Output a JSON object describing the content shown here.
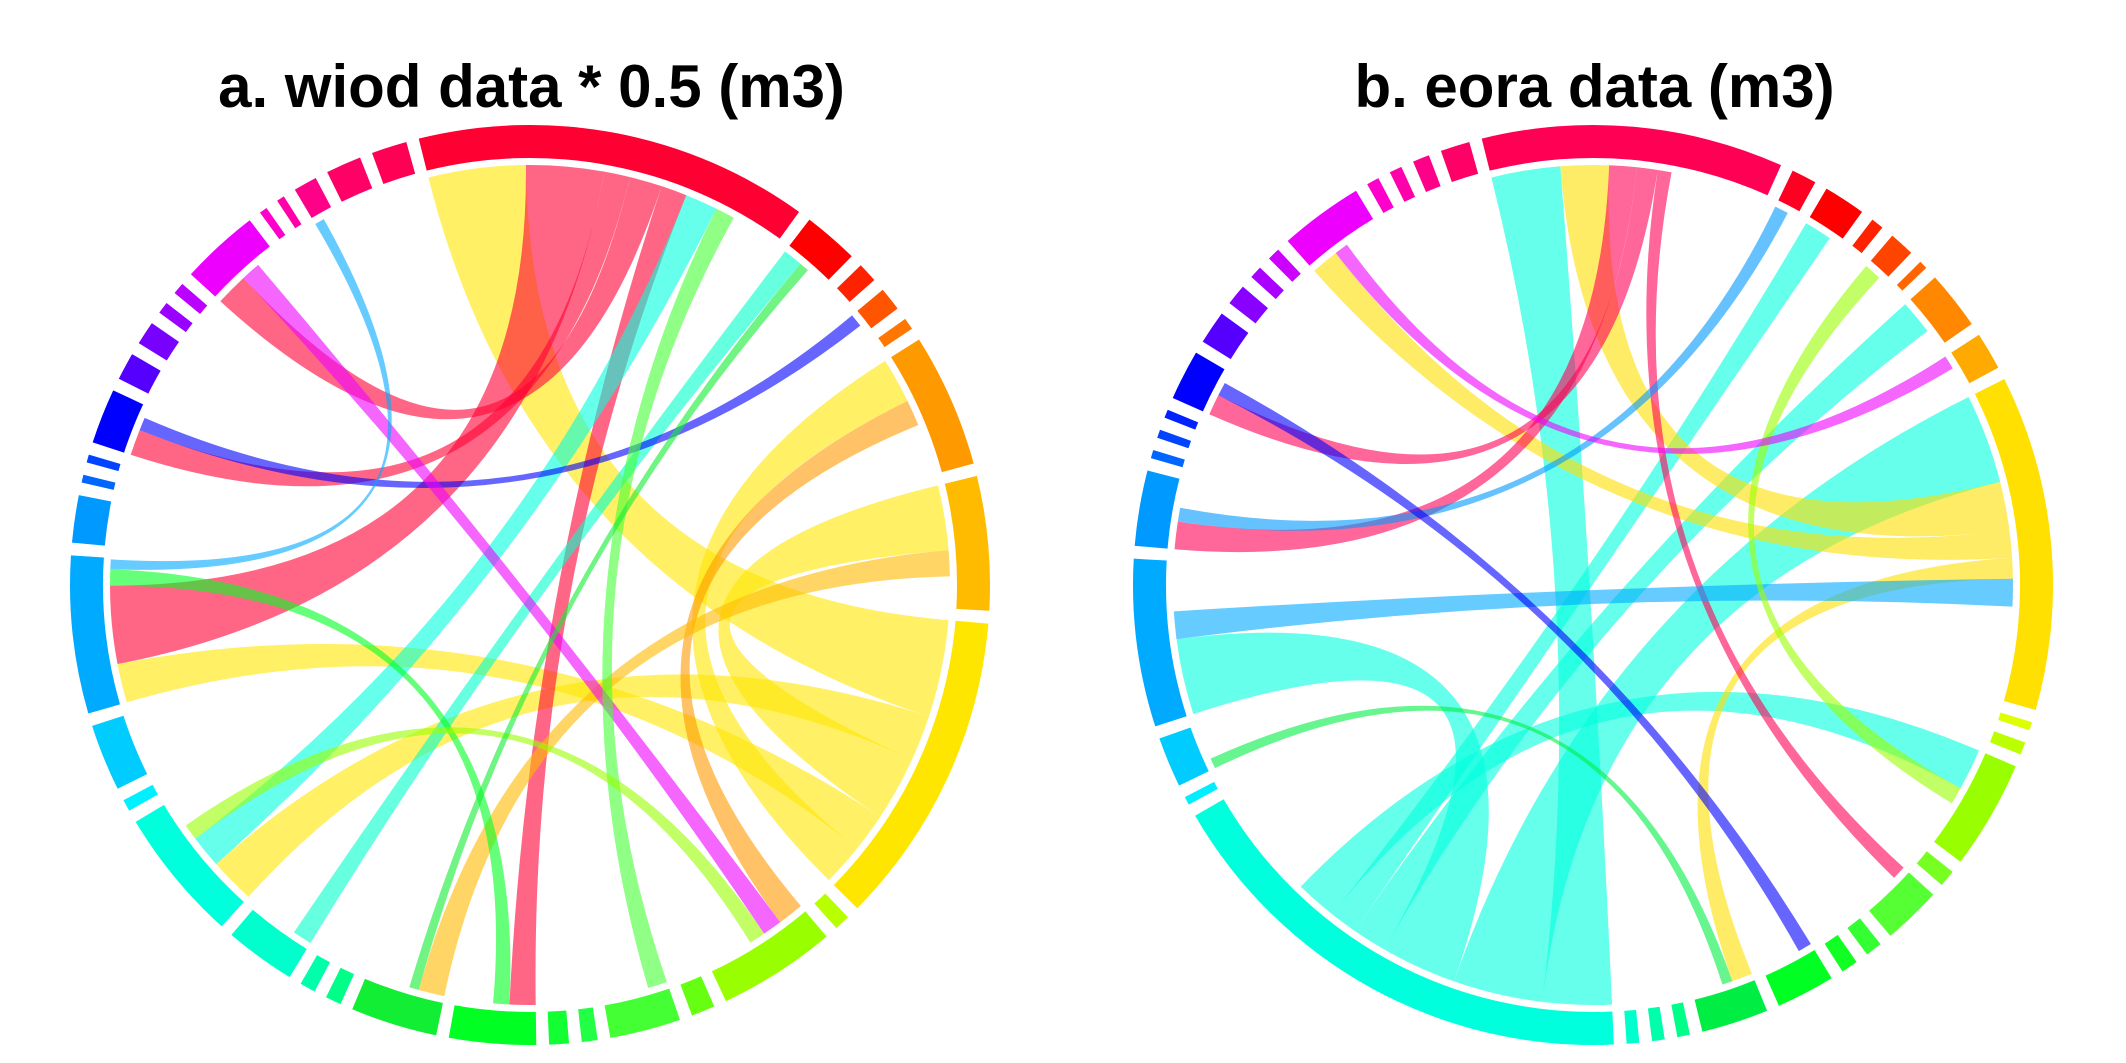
{
  "figure": {
    "panel_a_title": "a. wiod data * 0.5 (m3)",
    "panel_b_title": "b. eora data (m3)"
  },
  "chart_data": [
    {
      "type": "chord",
      "title": "a. wiod data * 0.5 (m3)",
      "sectors": [
        {
          "color": "#FF0033",
          "value": 100
        },
        {
          "color": "#FF0000",
          "value": 14
        },
        {
          "color": "#FF2200",
          "value": 5
        },
        {
          "color": "#FF5500",
          "value": 6
        },
        {
          "color": "#FF7700",
          "value": 3
        },
        {
          "color": "#FF9900",
          "value": 34
        },
        {
          "color": "#FFBB00",
          "value": 34
        },
        {
          "color": "#FFE600",
          "value": 80
        },
        {
          "color": "#B8FF00",
          "value": 4
        },
        {
          "color": "#99FF00",
          "value": 30
        },
        {
          "color": "#66FF11",
          "value": 6
        },
        {
          "color": "#44FF33",
          "value": 18
        },
        {
          "color": "#22FF44",
          "value": 4
        },
        {
          "color": "#11FF33",
          "value": 5
        },
        {
          "color": "#00FF22",
          "value": 22
        },
        {
          "color": "#11EE33",
          "value": 22
        },
        {
          "color": "#00FF88",
          "value": 4
        },
        {
          "color": "#00FFAA",
          "value": 4
        },
        {
          "color": "#00FFCC",
          "value": 18
        },
        {
          "color": "#00FFDD",
          "value": 34
        },
        {
          "color": "#00F0FF",
          "value": 3
        },
        {
          "color": "#00CCFF",
          "value": 17
        },
        {
          "color": "#00AAFF",
          "value": 40
        },
        {
          "color": "#0099FF",
          "value": 12
        },
        {
          "color": "#0066FF",
          "value": 2
        },
        {
          "color": "#0044FF",
          "value": 2
        },
        {
          "color": "#0000FF",
          "value": 14
        },
        {
          "color": "#5500FF",
          "value": 7
        },
        {
          "color": "#7700FF",
          "value": 6
        },
        {
          "color": "#9900FF",
          "value": 3
        },
        {
          "color": "#BB00FF",
          "value": 3
        },
        {
          "color": "#EE00FF",
          "value": 20
        },
        {
          "color": "#FF00CC",
          "value": 2
        },
        {
          "color": "#FF00AA",
          "value": 2
        },
        {
          "color": "#FF0088",
          "value": 6
        },
        {
          "color": "#FF0066",
          "value": 9
        },
        {
          "color": "#FF0055",
          "value": 9
        }
      ],
      "flows": [
        {
          "from": 7,
          "to": 0,
          "value": 30
        },
        {
          "from": 7,
          "to": 19,
          "value": 14
        },
        {
          "from": 7,
          "to": 6,
          "value": 20
        },
        {
          "from": 7,
          "to": 22,
          "value": 12
        },
        {
          "from": 7,
          "to": 5,
          "value": 14
        },
        {
          "from": 0,
          "to": 22,
          "value": 24
        },
        {
          "from": 0,
          "to": 26,
          "value": 8
        },
        {
          "from": 0,
          "to": 31,
          "value": 10
        },
        {
          "from": 0,
          "to": 14,
          "value": 8
        },
        {
          "from": 19,
          "to": 0,
          "value": 10
        },
        {
          "from": 18,
          "to": 1,
          "value": 6
        },
        {
          "from": 5,
          "to": 9,
          "value": 8
        },
        {
          "from": 6,
          "to": 15,
          "value": 8
        },
        {
          "from": 26,
          "to": 3,
          "value": 4
        },
        {
          "from": 31,
          "to": 9,
          "value": 6
        },
        {
          "from": 11,
          "to": 0,
          "value": 6
        },
        {
          "from": 14,
          "to": 22,
          "value": 5
        },
        {
          "from": 9,
          "to": 19,
          "value": 5
        },
        {
          "from": 15,
          "to": 1,
          "value": 3
        },
        {
          "from": 22,
          "to": 34,
          "value": 3
        }
      ]
    },
    {
      "type": "chord",
      "title": "b. eora data (m3)",
      "sectors": [
        {
          "color": "#FF0055",
          "value": 72
        },
        {
          "color": "#FF0022",
          "value": 6
        },
        {
          "color": "#FF0000",
          "value": 10
        },
        {
          "color": "#FF2200",
          "value": 3
        },
        {
          "color": "#FF4400",
          "value": 6
        },
        {
          "color": "#FF6600",
          "value": 2
        },
        {
          "color": "#FF8800",
          "value": 14
        },
        {
          "color": "#FFAA00",
          "value": 9
        },
        {
          "color": "#FFE000",
          "value": 80
        },
        {
          "color": "#DDFF00",
          "value": 2
        },
        {
          "color": "#BBFF00",
          "value": 3
        },
        {
          "color": "#99FF00",
          "value": 26
        },
        {
          "color": "#77FF22",
          "value": 4
        },
        {
          "color": "#55FF33",
          "value": 14
        },
        {
          "color": "#33FF33",
          "value": 4
        },
        {
          "color": "#11FF22",
          "value": 4
        },
        {
          "color": "#00FF22",
          "value": 14
        },
        {
          "color": "#00EE44",
          "value": 16
        },
        {
          "color": "#00FF88",
          "value": 3
        },
        {
          "color": "#00FFAA",
          "value": 3
        },
        {
          "color": "#00FFCC",
          "value": 3
        },
        {
          "color": "#00FFDD",
          "value": 118
        },
        {
          "color": "#00EEFF",
          "value": 2
        },
        {
          "color": "#00CCFF",
          "value": 12
        },
        {
          "color": "#00AAFF",
          "value": 40
        },
        {
          "color": "#0099FF",
          "value": 18
        },
        {
          "color": "#0066FF",
          "value": 2
        },
        {
          "color": "#0044FF",
          "value": 2
        },
        {
          "color": "#0022FF",
          "value": 2
        },
        {
          "color": "#0000FF",
          "value": 12
        },
        {
          "color": "#5500FF",
          "value": 8
        },
        {
          "color": "#8800FF",
          "value": 5
        },
        {
          "color": "#AA00FF",
          "value": 3
        },
        {
          "color": "#CC00FF",
          "value": 3
        },
        {
          "color": "#EE00FF",
          "value": 20
        },
        {
          "color": "#FF00CC",
          "value": 3
        },
        {
          "color": "#FF00AA",
          "value": 3
        },
        {
          "color": "#FF0088",
          "value": 4
        },
        {
          "color": "#FF0066",
          "value": 7
        }
      ],
      "flows": [
        {
          "from": 21,
          "to": 0,
          "value": 20
        },
        {
          "from": 21,
          "to": 8,
          "value": 26
        },
        {
          "from": 21,
          "to": 24,
          "value": 22
        },
        {
          "from": 21,
          "to": 6,
          "value": 10
        },
        {
          "from": 21,
          "to": 2,
          "value": 8
        },
        {
          "from": 21,
          "to": 11,
          "value": 12
        },
        {
          "from": 8,
          "to": 0,
          "value": 14
        },
        {
          "from": 8,
          "to": 34,
          "value": 8
        },
        {
          "from": 8,
          "to": 17,
          "value": 6
        },
        {
          "from": 0,
          "to": 25,
          "value": 8
        },
        {
          "from": 0,
          "to": 29,
          "value": 6
        },
        {
          "from": 0,
          "to": 13,
          "value": 4
        },
        {
          "from": 24,
          "to": 8,
          "value": 8
        },
        {
          "from": 25,
          "to": 1,
          "value": 4
        },
        {
          "from": 29,
          "to": 16,
          "value": 4
        },
        {
          "from": 11,
          "to": 4,
          "value": 5
        },
        {
          "from": 34,
          "to": 7,
          "value": 4
        },
        {
          "from": 17,
          "to": 23,
          "value": 3
        }
      ]
    }
  ]
}
